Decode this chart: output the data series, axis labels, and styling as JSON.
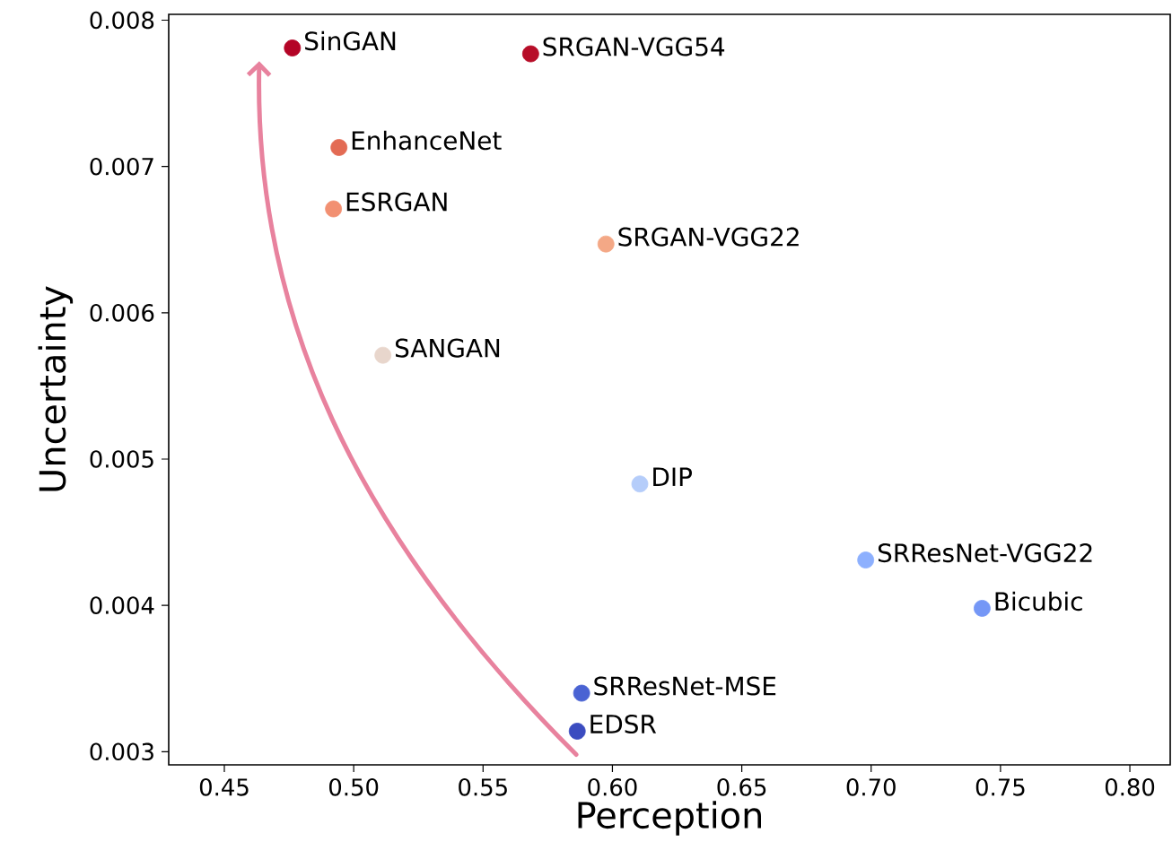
{
  "chart_data": {
    "type": "scatter",
    "xlabel": "Perception",
    "ylabel": "Uncertainty",
    "x": [
      0.4763,
      0.5684,
      0.4943,
      0.4922,
      0.5975,
      0.5113,
      0.6106,
      0.6979,
      0.7429,
      0.5881,
      0.5864
    ],
    "values": [
      0.00781,
      0.00777,
      0.00713,
      0.00671,
      0.00647,
      0.00571,
      0.00483,
      0.00431,
      0.00398,
      0.0034,
      0.00314
    ],
    "colors": [
      "#b40426",
      "#b70d28",
      "#e36b54",
      "#f29072",
      "#f4a886",
      "#e8d6cc",
      "#b5cdfa",
      "#8db0fe",
      "#7597f6",
      "#4a63d3",
      "#3b4cc0"
    ],
    "marker": "circle",
    "xlim": [
      0.4285,
      0.8156
    ],
    "ylim": [
      0.00291,
      0.00804
    ],
    "xticks": [
      0.45,
      {
        "value": 0.5,
        "label": "0.50"
      },
      0.55,
      {
        "value": 0.6,
        "label": "0.60"
      },
      0.65,
      {
        "value": 0.7,
        "label": "0.70"
      },
      0.75,
      {
        "value": 0.8,
        "label": "0.80"
      }
    ],
    "yticks": [
      0.003,
      0.004,
      0.005,
      0.006,
      0.007,
      0.008
    ],
    "annotations": [
      {
        "text": "SinGAN",
        "x": 0.4763,
        "y": 0.00781
      },
      {
        "text": "SRGAN-VGG54",
        "x": 0.5684,
        "y": 0.00777
      },
      {
        "text": "EnhanceNet",
        "x": 0.4943,
        "y": 0.00713
      },
      {
        "text": "ESRGAN",
        "x": 0.4922,
        "y": 0.00671
      },
      {
        "text": "SRGAN-VGG22",
        "x": 0.5975,
        "y": 0.00647
      },
      {
        "text": "SANGAN",
        "x": 0.5113,
        "y": 0.00571
      },
      {
        "text": "DIP",
        "x": 0.6106,
        "y": 0.00483
      },
      {
        "text": "SRResNet-VGG22",
        "x": 0.6979,
        "y": 0.00431
      },
      {
        "text": "Bicubic",
        "x": 0.7429,
        "y": 0.00398
      },
      {
        "text": "SRResNet-MSE",
        "x": 0.5881,
        "y": 0.0034
      },
      {
        "text": "EDSR",
        "x": 0.5864,
        "y": 0.00314
      }
    ]
  }
}
